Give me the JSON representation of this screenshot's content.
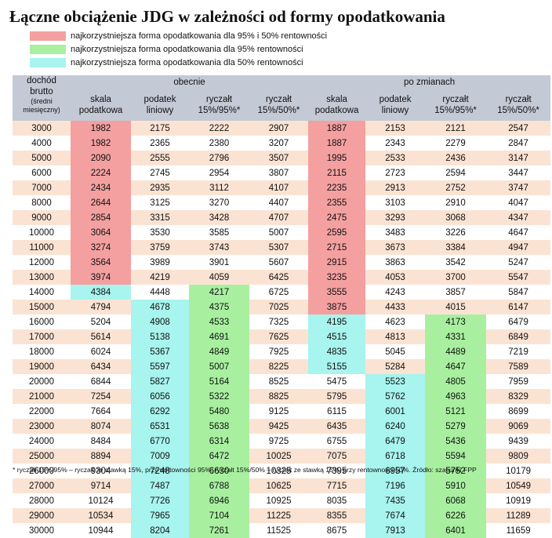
{
  "title": "Łączne obciążenie JDG w zależności od formy opodatkowania",
  "legend": [
    {
      "color": "#f4a0a0",
      "label": "najkorzystniejsza forma opodatkowania dla 95% i 50% rentowności"
    },
    {
      "color": "#a8f0a0",
      "label": "najkorzystniejsza forma opodatkowania dla 95% rentowności"
    },
    {
      "color": "#a8f4ee",
      "label": "najkorzystniejsza forma opodatkowania dla 50% rentowności"
    }
  ],
  "table": {
    "header": {
      "dochod_line1": "dochód",
      "dochod_line2": "brutto",
      "dochod_line3": "(średni",
      "dochod_line4": "miesięczny)",
      "group_obecnie": "obecnie",
      "group_po_zmianach": "po zmianach",
      "columns_obecnie": [
        [
          "skala",
          "podatkowa"
        ],
        [
          "podatek",
          "liniowy"
        ],
        [
          "ryczałt",
          "15%/95%*"
        ],
        [
          "ryczałt",
          "15%/50%*"
        ]
      ],
      "columns_po_zmianach": [
        [
          "skala",
          "podatkowa"
        ],
        [
          "podatek",
          "liniowy"
        ],
        [
          "ryczałt",
          "15%/95%*"
        ],
        [
          "ryczałt",
          "15%/50%*"
        ]
      ]
    },
    "rows": [
      {
        "income": "3000",
        "values": [
          "1982",
          "2175",
          "2222",
          "2907",
          "1887",
          "2153",
          "2121",
          "2547"
        ],
        "hl": [
          "r",
          "",
          "",
          "",
          "r",
          "",
          "",
          ""
        ]
      },
      {
        "income": "4000",
        "values": [
          "1982",
          "2365",
          "2380",
          "3207",
          "1887",
          "2343",
          "2279",
          "2847"
        ],
        "hl": [
          "r",
          "",
          "",
          "",
          "r",
          "",
          "",
          ""
        ]
      },
      {
        "income": "5000",
        "values": [
          "2090",
          "2555",
          "2796",
          "3507",
          "1995",
          "2533",
          "2436",
          "3147"
        ],
        "hl": [
          "r",
          "",
          "",
          "",
          "r",
          "",
          "",
          ""
        ]
      },
      {
        "income": "6000",
        "values": [
          "2224",
          "2745",
          "2954",
          "3807",
          "2115",
          "2723",
          "2594",
          "3447"
        ],
        "hl": [
          "r",
          "",
          "",
          "",
          "r",
          "",
          "",
          ""
        ]
      },
      {
        "income": "7000",
        "values": [
          "2434",
          "2935",
          "3112",
          "4107",
          "2235",
          "2913",
          "2752",
          "3747"
        ],
        "hl": [
          "r",
          "",
          "",
          "",
          "r",
          "",
          "",
          ""
        ]
      },
      {
        "income": "8000",
        "values": [
          "2644",
          "3125",
          "3270",
          "4407",
          "2355",
          "3103",
          "2910",
          "4047"
        ],
        "hl": [
          "r",
          "",
          "",
          "",
          "r",
          "",
          "",
          ""
        ]
      },
      {
        "income": "9000",
        "values": [
          "2854",
          "3315",
          "3428",
          "4707",
          "2475",
          "3293",
          "3068",
          "4347"
        ],
        "hl": [
          "r",
          "",
          "",
          "",
          "r",
          "",
          "",
          ""
        ]
      },
      {
        "income": "10000",
        "values": [
          "3064",
          "3530",
          "3585",
          "5007",
          "2595",
          "3483",
          "3226",
          "4647"
        ],
        "hl": [
          "r",
          "",
          "",
          "",
          "r",
          "",
          "",
          ""
        ]
      },
      {
        "income": "11000",
        "values": [
          "3274",
          "3759",
          "3743",
          "5307",
          "2715",
          "3673",
          "3384",
          "4947"
        ],
        "hl": [
          "r",
          "",
          "",
          "",
          "r",
          "",
          "",
          ""
        ]
      },
      {
        "income": "12000",
        "values": [
          "3564",
          "3989",
          "3901",
          "5607",
          "2915",
          "3863",
          "3542",
          "5247"
        ],
        "hl": [
          "r",
          "",
          "",
          "",
          "r",
          "",
          "",
          ""
        ]
      },
      {
        "income": "13000",
        "values": [
          "3974",
          "4219",
          "4059",
          "6425",
          "3235",
          "4053",
          "3700",
          "5547"
        ],
        "hl": [
          "r",
          "",
          "",
          "",
          "r",
          "",
          "",
          ""
        ]
      },
      {
        "income": "14000",
        "values": [
          "4384",
          "4448",
          "4217",
          "6725",
          "3555",
          "4243",
          "3857",
          "5847"
        ],
        "hl": [
          "c",
          "",
          "g",
          "",
          "r",
          "",
          "",
          ""
        ]
      },
      {
        "income": "15000",
        "values": [
          "4794",
          "4678",
          "4375",
          "7025",
          "3875",
          "4433",
          "4015",
          "6147"
        ],
        "hl": [
          "",
          "c",
          "g",
          "",
          "r",
          "",
          "",
          ""
        ]
      },
      {
        "income": "16000",
        "values": [
          "5204",
          "4908",
          "4533",
          "7325",
          "4195",
          "4623",
          "4173",
          "6479"
        ],
        "hl": [
          "",
          "c",
          "g",
          "",
          "c",
          "",
          "g",
          ""
        ]
      },
      {
        "income": "17000",
        "values": [
          "5614",
          "5138",
          "4691",
          "7625",
          "4515",
          "4813",
          "4331",
          "6849"
        ],
        "hl": [
          "",
          "c",
          "g",
          "",
          "c",
          "",
          "g",
          ""
        ]
      },
      {
        "income": "18000",
        "values": [
          "6024",
          "5367",
          "4849",
          "7925",
          "4835",
          "5045",
          "4489",
          "7219"
        ],
        "hl": [
          "",
          "c",
          "g",
          "",
          "c",
          "",
          "g",
          ""
        ]
      },
      {
        "income": "19000",
        "values": [
          "6434",
          "5597",
          "5007",
          "8225",
          "5155",
          "5284",
          "4647",
          "7589"
        ],
        "hl": [
          "",
          "c",
          "g",
          "",
          "c",
          "",
          "g",
          ""
        ]
      },
      {
        "income": "20000",
        "values": [
          "6844",
          "5827",
          "5164",
          "8525",
          "5475",
          "5523",
          "4805",
          "7959"
        ],
        "hl": [
          "",
          "c",
          "g",
          "",
          "",
          "c",
          "g",
          ""
        ]
      },
      {
        "income": "21000",
        "values": [
          "7254",
          "6056",
          "5322",
          "8825",
          "5795",
          "5762",
          "4963",
          "8329"
        ],
        "hl": [
          "",
          "c",
          "g",
          "",
          "",
          "c",
          "g",
          ""
        ]
      },
      {
        "income": "22000",
        "values": [
          "7664",
          "6292",
          "5480",
          "9125",
          "6115",
          "6001",
          "5121",
          "8699"
        ],
        "hl": [
          "",
          "c",
          "g",
          "",
          "",
          "c",
          "g",
          ""
        ]
      },
      {
        "income": "23000",
        "values": [
          "8074",
          "6531",
          "5638",
          "9425",
          "6435",
          "6240",
          "5279",
          "9069"
        ],
        "hl": [
          "",
          "c",
          "g",
          "",
          "",
          "c",
          "g",
          ""
        ]
      },
      {
        "income": "24000",
        "values": [
          "8484",
          "6770",
          "6314",
          "9725",
          "6755",
          "6479",
          "5436",
          "9439"
        ],
        "hl": [
          "",
          "c",
          "g",
          "",
          "",
          "c",
          "g",
          ""
        ]
      },
      {
        "income": "25000",
        "values": [
          "8894",
          "7009",
          "6472",
          "10025",
          "7075",
          "6718",
          "5594",
          "9809"
        ],
        "hl": [
          "",
          "c",
          "g",
          "",
          "",
          "c",
          "g",
          ""
        ]
      },
      {
        "income": "26000",
        "values": [
          "9304",
          "7248",
          "6630",
          "10325",
          "7395",
          "6957",
          "5752",
          "10179"
        ],
        "hl": [
          "",
          "c",
          "g",
          "",
          "",
          "c",
          "g",
          ""
        ]
      },
      {
        "income": "27000",
        "values": [
          "9714",
          "7487",
          "6788",
          "10625",
          "7715",
          "7196",
          "5910",
          "10549"
        ],
        "hl": [
          "",
          "c",
          "g",
          "",
          "",
          "c",
          "g",
          ""
        ]
      },
      {
        "income": "28000",
        "values": [
          "10124",
          "7726",
          "6946",
          "10925",
          "8035",
          "7435",
          "6068",
          "10919"
        ],
        "hl": [
          "",
          "c",
          "g",
          "",
          "",
          "c",
          "g",
          ""
        ]
      },
      {
        "income": "29000",
        "values": [
          "10534",
          "7965",
          "7104",
          "11225",
          "8355",
          "7674",
          "6226",
          "11289"
        ],
        "hl": [
          "",
          "c",
          "g",
          "",
          "",
          "c",
          "g",
          ""
        ]
      },
      {
        "income": "30000",
        "values": [
          "10944",
          "8204",
          "7261",
          "11525",
          "8675",
          "7913",
          "6401",
          "11659"
        ],
        "hl": [
          "",
          "c",
          "g",
          "",
          "",
          "c",
          "g",
          ""
        ]
      }
    ]
  },
  "footnote": "* ryczałt 15%/95% – ryczałt ze stawką 15%, przy rentowności 95%; ryczałt 15%/50% – ryczałt ze stawką 15%, przy rentowności 50%. Źródło: szacunki FPP"
}
